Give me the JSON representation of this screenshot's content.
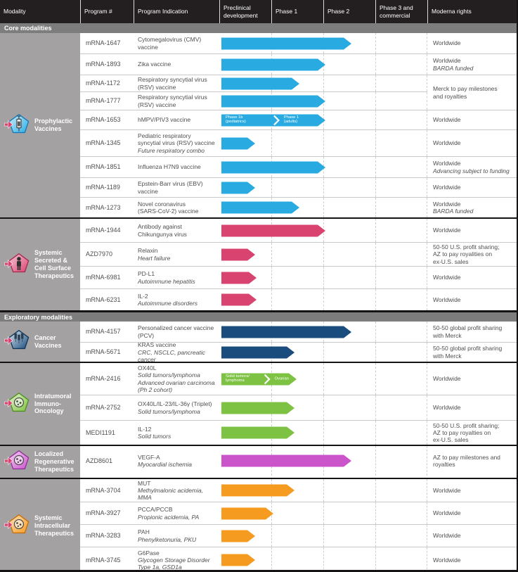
{
  "header": {
    "columns": [
      "Modality",
      "Program #",
      "Program Indication",
      "Preclinical development",
      "Phase 1",
      "Phase 2",
      "Phase 3 and commercial",
      "Moderna rights"
    ]
  },
  "bands": {
    "core": "Core modalities",
    "exploratory": "Exploratory modalities"
  },
  "colors": {
    "header_bg": "#231f20",
    "band_bg": "#7d7d7d",
    "modality_bg": "#a3a1a2",
    "blue": "#29abe2",
    "pink": "#d8446f",
    "navy": "#1a4c7d",
    "green": "#7dc242",
    "violet": "#cb54ca",
    "orange": "#f59b20"
  },
  "chart_data": {
    "type": "table",
    "description": "Drug development pipeline; horizontal phase-progress arrows per program",
    "phase_columns": [
      "Preclinical development",
      "Phase 1",
      "Phase 2",
      "Phase 3 and commercial"
    ],
    "progress_unit": "phases completed: 1 = end of Preclinical, 2 = end of Phase 1, 3 = end of Phase 2",
    "sections": [
      {
        "modality": "Prophylactic Vaccines",
        "icon": "prophylactic-vaccines-icon",
        "glyph": "syringe",
        "color": "#29abe2",
        "color_light": "#cfeefb",
        "color_dark": "#1779b5",
        "rows": [
          {
            "program": "mRNA-1647",
            "indication": [
              "Cytomegalovirus (CMV)",
              "vaccine"
            ],
            "indication_italic": [],
            "progress": 2.5,
            "rights": [
              "Worldwide"
            ],
            "rights_italic": []
          },
          {
            "program": "mRNA-1893",
            "indication": [
              "Zika vaccine"
            ],
            "indication_italic": [],
            "progress": 2.0,
            "rights": [
              "Worldwide"
            ],
            "rights_italic": [
              "BARDA funded"
            ]
          },
          {
            "program": "mRNA-1172",
            "indication": [
              "Respiratory syncytial virus",
              "(RSV) vaccine"
            ],
            "indication_italic": [],
            "progress": 1.5,
            "rights": [
              "Merck to pay milestones",
              "and royalties"
            ],
            "rights_italic": [],
            "rights_rowspan": 2
          },
          {
            "program": "mRNA-1777",
            "indication": [
              "Respiratory syncytial virus",
              "(RSV) vaccine"
            ],
            "indication_italic": [],
            "progress": 2.0,
            "rights_merged": true
          },
          {
            "program": "mRNA-1653",
            "indication": [
              "hMPV/PIV3 vaccine"
            ],
            "indication_italic": [],
            "progress": 2.0,
            "segments": [
              {
                "label": [
                  "Phase 1b",
                  "(pediatrics)"
                ],
                "to": 1.08
              },
              {
                "label": [
                  "Phase 1",
                  "(adults)"
                ],
                "to": 2.0
              }
            ],
            "rights": [
              "Worldwide"
            ],
            "rights_italic": []
          },
          {
            "program": "mRNA-1345",
            "indication": [
              "Pediatric respiratory",
              "syncytial virus (RSV) vaccine"
            ],
            "indication_italic": [
              "Future respiratory combo"
            ],
            "progress": 0.65,
            "rights": [
              "Worldwide"
            ],
            "rights_italic": []
          },
          {
            "program": "mRNA-1851",
            "indication": [
              "Influenza H7N9 vaccine"
            ],
            "indication_italic": [],
            "progress": 2.0,
            "rights": [
              "Worldwide"
            ],
            "rights_italic": [
              "Advancing subject to funding"
            ]
          },
          {
            "program": "mRNA-1189",
            "indication": [
              "Epstein-Barr virus (EBV)",
              "vaccine"
            ],
            "indication_italic": [],
            "progress": 0.65,
            "rights": [
              "Worldwide"
            ],
            "rights_italic": []
          },
          {
            "program": "mRNA-1273",
            "indication": [
              "Novel coronavirus",
              "(SARS-CoV-2) vaccine"
            ],
            "indication_italic": [],
            "progress": 1.5,
            "rights": [
              "Worldwide"
            ],
            "rights_italic": [
              "BARDA funded"
            ]
          }
        ]
      },
      {
        "modality": "Systemic Secreted & Cell Surface Therapeutics",
        "icon": "systemic-secreted-icon",
        "glyph": "person",
        "color": "#d8446f",
        "color_light": "#f7c9d8",
        "color_dark": "#a62a52",
        "rows": [
          {
            "program": "mRNA-1944",
            "indication": [
              "Antibody against",
              "Chikungunya virus"
            ],
            "indication_italic": [],
            "progress": 2.0,
            "rights": [
              "Worldwide"
            ],
            "rights_italic": []
          },
          {
            "program": "AZD7970",
            "indication": [
              "Relaxin"
            ],
            "indication_italic": [
              "Heart failure"
            ],
            "progress": 0.65,
            "rights": [
              "50-50 U.S. profit sharing;",
              "AZ to pay royalities on",
              "ex-U.S. sales"
            ],
            "rights_italic": []
          },
          {
            "program": "mRNA-6981",
            "indication": [
              "PD-L1"
            ],
            "indication_italic": [
              "Autoimmune hepatitis"
            ],
            "progress": 0.67,
            "rights": [
              "Worldwide"
            ],
            "rights_italic": []
          },
          {
            "program": "mRNA-6231",
            "indication": [
              "IL-2"
            ],
            "indication_italic": [
              "Autoimmune disorders"
            ],
            "progress": 0.67,
            "rights": [
              "Worldwide"
            ],
            "rights_italic": []
          }
        ]
      },
      {
        "modality": "Cancer Vaccines",
        "icon": "cancer-vaccines-icon",
        "glyph": "syringes",
        "color": "#1a4c7d",
        "color_light": "#dbe7f2",
        "color_dark": "#12365a",
        "band_before": "exploratory",
        "rows": [
          {
            "program": "mRNA-4157",
            "indication": [
              "Personalized cancer vaccine",
              "(PCV)"
            ],
            "indication_italic": [],
            "progress": 2.5,
            "rights": [
              "50-50 global profit sharing",
              "with Merck"
            ],
            "rights_italic": []
          },
          {
            "program": "mRNA-5671",
            "indication": [
              "KRAS vaccine"
            ],
            "indication_italic": [
              "CRC, NSCLC, pancreatic cancer"
            ],
            "progress": 1.4,
            "rights": [
              "50-50 global profit sharing",
              "with Merck"
            ],
            "rights_italic": []
          }
        ]
      },
      {
        "modality": "Intratumoral Immuno-Oncology",
        "icon": "intratumoral-immuno-oncology-icon",
        "glyph": "cell",
        "color": "#7dc242",
        "color_light": "#e2f2cd",
        "color_dark": "#4e8f1f",
        "rows": [
          {
            "program": "mRNA-2416",
            "indication": [
              "OX40L"
            ],
            "indication_italic": [
              "Solid tumors/lymphoma",
              "Advanced ovarian carcinoma",
              "(Ph 2 cohort)"
            ],
            "progress": 1.45,
            "segments": [
              {
                "label": [
                  "Solid tumors/",
                  "lymphoma"
                ],
                "to": 0.9
              },
              {
                "label": [
                  "Ovarian"
                ],
                "to": 1.45
              }
            ],
            "rights": [
              "Worldwide"
            ],
            "rights_italic": []
          },
          {
            "program": "mRNA-2752",
            "indication": [
              "OX40L/IL-23/IL-36γ (Triplet)"
            ],
            "indication_italic": [
              "Solid tumors/lymphoma"
            ],
            "progress": 1.4,
            "rights": [
              "Worldwide"
            ],
            "rights_italic": []
          },
          {
            "program": "MEDI1191",
            "indication": [
              "IL-12"
            ],
            "indication_italic": [
              "Solid tumors"
            ],
            "progress": 1.4,
            "rights": [
              "50-50 U.S. profit sharing;",
              "AZ to pay royalties on",
              "ex-U.S. sales"
            ],
            "rights_italic": []
          }
        ]
      },
      {
        "modality": "Localized Regenerative Therapeutics",
        "icon": "localized-regenerative-icon",
        "glyph": "cell",
        "color": "#cb54ca",
        "color_light": "#f3d4f3",
        "color_dark": "#93319b",
        "rows": [
          {
            "program": "AZD8601",
            "indication": [
              "VEGF-A"
            ],
            "indication_italic": [
              "Myocardial ischemia"
            ],
            "progress": 2.5,
            "rights": [
              "AZ to pay milestones and",
              "royalties"
            ],
            "rights_italic": []
          }
        ]
      },
      {
        "modality": "Systemic Intracellular Therapeutics",
        "icon": "systemic-intracellular-icon",
        "glyph": "cell",
        "color": "#f59b20",
        "color_light": "#fde3bd",
        "color_dark": "#c96f08",
        "rows": [
          {
            "program": "mRNA-3704",
            "indication": [
              "MUT"
            ],
            "indication_italic": [
              "Methylmalonic acidemia, MMA"
            ],
            "progress": 1.4,
            "rights": [
              "Worldwide"
            ],
            "rights_italic": []
          },
          {
            "program": "mRNA-3927",
            "indication": [
              "PCCA/PCCB"
            ],
            "indication_italic": [
              "Propionic acidemia, PA"
            ],
            "progress": 1.0,
            "rights": [
              "Worldwide"
            ],
            "rights_italic": []
          },
          {
            "program": "mRNA-3283",
            "indication": [
              "PAH"
            ],
            "indication_italic": [
              "Phenylketonuria, PKU"
            ],
            "progress": 0.65,
            "rights": [
              "Worldwide"
            ],
            "rights_italic": []
          },
          {
            "program": "mRNA-3745",
            "indication": [
              "G6Pase"
            ],
            "indication_italic": [
              "Glycogen Storage Disorder",
              "Type 1a, GSD1a"
            ],
            "progress": 0.65,
            "rights": [
              "Worldwide"
            ],
            "rights_italic": []
          }
        ]
      }
    ]
  }
}
